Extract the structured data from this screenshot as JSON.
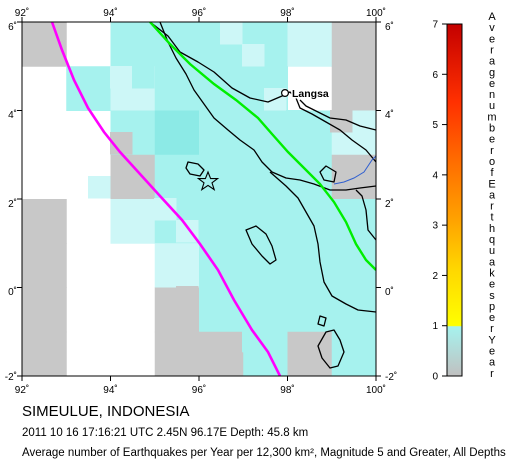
{
  "map": {
    "lon_ticks": [
      "92˚",
      "94˚",
      "96˚",
      "98˚",
      "100˚"
    ],
    "lat_ticks_left": [
      "6˚",
      "4˚",
      "2˚",
      "0˚",
      "-2˚"
    ],
    "lat_ticks_right": [
      "6˚",
      "4˚",
      "2˚",
      "0˚",
      "-2˚"
    ],
    "lon_range": [
      92,
      100
    ],
    "lat_range": [
      -2,
      6
    ],
    "city_label": "Langsa",
    "colors": {
      "land_outline": "#000000",
      "plate_boundary": "#ff00ff",
      "fault": "#00ee00",
      "river": "#3060d0",
      "cell_gray": "#c8c8c8",
      "cell_cyan_light": "#cdf7f7",
      "cell_cyan": "#a6f2ee",
      "cell_cyan_mid": "#8ceae6"
    }
  },
  "legend": {
    "title_letters": [
      "A",
      "v",
      "e",
      "r",
      "a",
      "g",
      "e",
      "n",
      "u",
      "m",
      "b",
      "e",
      "r",
      "o",
      "f",
      "E",
      "a",
      "r",
      "t",
      "h",
      "q",
      "u",
      "a",
      "k",
      "e",
      "s",
      "p",
      "e",
      "r",
      "Y",
      "e",
      "a",
      "r"
    ],
    "ticks": [
      "7",
      "6",
      "5",
      "4",
      "3",
      "2",
      "1",
      "0"
    ]
  },
  "caption": {
    "title": "SIMEULUE, INDONESIA",
    "event": "2011 10 16 17:16:21 UTC 2.45N 96.17E Depth: 45.8 km",
    "desc": "Average number of Earthquakes per Year per 12,300 km², Magnitude 5 and Greater, All Depths"
  }
}
